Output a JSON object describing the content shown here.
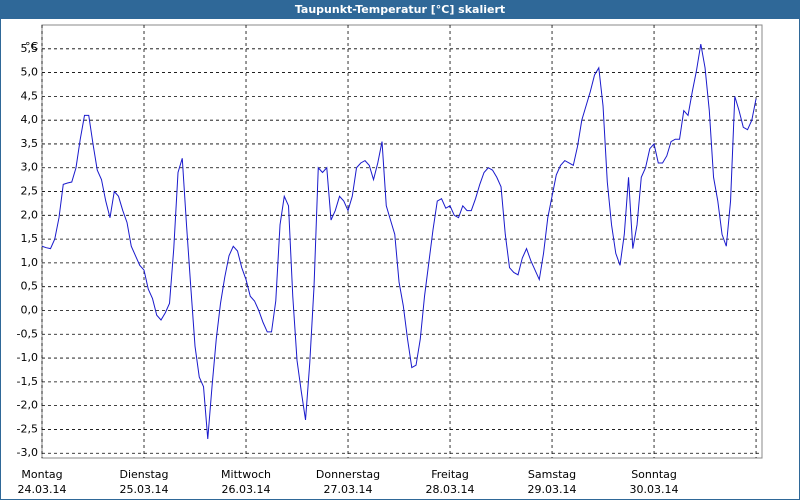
{
  "chart_data": {
    "type": "line",
    "title": "Taupunkt-Temperatur [°C] skaliert",
    "y_label": "°C",
    "x": [
      0,
      1,
      2,
      3,
      4,
      5,
      6,
      7,
      8,
      9,
      10,
      11,
      12,
      13,
      14,
      15,
      16,
      17,
      18,
      19,
      20,
      21,
      22,
      23,
      24,
      25,
      26,
      27,
      28,
      29,
      30,
      31,
      32,
      33,
      34,
      35,
      36,
      37,
      38,
      39,
      40,
      41,
      42,
      43,
      44,
      45,
      46,
      47,
      48,
      49,
      50,
      51,
      52,
      53,
      54,
      55,
      56,
      57,
      58,
      59,
      60,
      61,
      62,
      63,
      64,
      65,
      66,
      67,
      68,
      69,
      70,
      71,
      72,
      73,
      74,
      75,
      76,
      77,
      78,
      79,
      80,
      81,
      82,
      83,
      84,
      85,
      86,
      87,
      88,
      89,
      90,
      91,
      92,
      93,
      94,
      95,
      96,
      97,
      98,
      99,
      100,
      101,
      102,
      103,
      104,
      105,
      106,
      107,
      108,
      109,
      110,
      111,
      112,
      113,
      114,
      115,
      116,
      117,
      118,
      119,
      120,
      121,
      122,
      123,
      124,
      125,
      126,
      127,
      128,
      129,
      130,
      131,
      132,
      133,
      134,
      135,
      136,
      137,
      138,
      139,
      140,
      141,
      142,
      143,
      144,
      145,
      146,
      147,
      148,
      149,
      150,
      151,
      152,
      153,
      154,
      155,
      156,
      157,
      158,
      159,
      160,
      161,
      162,
      163,
      164,
      165,
      166,
      167,
      168
    ],
    "series": [
      {
        "name": "Taupunkt",
        "color": "#1a1acc",
        "values": [
          1.35,
          1.32,
          1.3,
          1.5,
          1.95,
          2.65,
          2.68,
          2.7,
          3.0,
          3.6,
          4.1,
          4.1,
          3.5,
          2.95,
          2.75,
          2.3,
          1.95,
          2.5,
          2.4,
          2.1,
          1.85,
          1.35,
          1.15,
          0.95,
          0.85,
          0.45,
          0.25,
          -0.1,
          -0.2,
          -0.05,
          0.15,
          1.3,
          2.9,
          3.2,
          1.8,
          0.5,
          -0.75,
          -1.4,
          -1.6,
          -2.7,
          -1.6,
          -0.6,
          0.15,
          0.7,
          1.15,
          1.35,
          1.25,
          0.9,
          0.65,
          0.3,
          0.2,
          0.0,
          -0.25,
          -0.45,
          -0.45,
          0.2,
          1.8,
          2.4,
          2.2,
          0.3,
          -1.05,
          -1.7,
          -2.3,
          -1.1,
          0.5,
          3.0,
          2.9,
          3.0,
          1.9,
          2.1,
          2.4,
          2.3,
          2.1,
          2.4,
          3.0,
          3.1,
          3.15,
          3.05,
          2.75,
          3.1,
          3.55,
          2.2,
          1.9,
          1.6,
          0.6,
          0.1,
          -0.6,
          -1.2,
          -1.15,
          -0.6,
          0.3,
          1.0,
          1.7,
          2.3,
          2.35,
          2.15,
          2.2,
          2.0,
          1.95,
          2.2,
          2.1,
          2.1,
          2.35,
          2.65,
          2.9,
          3.0,
          2.95,
          2.8,
          2.6,
          1.6,
          0.9,
          0.8,
          0.75,
          1.1,
          1.3,
          1.05,
          0.85,
          0.65,
          1.2,
          1.95,
          2.4,
          2.85,
          3.05,
          3.15,
          3.1,
          3.05,
          3.45,
          4.0,
          4.3,
          4.6,
          4.95,
          5.1,
          4.3,
          2.7,
          1.8,
          1.2,
          0.95,
          1.6,
          2.8,
          1.3,
          1.8,
          2.8,
          3.0,
          3.4,
          3.5,
          3.1,
          3.1,
          3.25,
          3.55,
          3.6,
          3.6,
          4.2,
          4.1,
          4.6,
          5.05,
          5.6,
          5.1,
          4.2,
          2.8,
          2.3,
          1.6,
          1.35,
          2.3,
          4.5,
          4.2,
          3.85,
          3.8,
          4.0,
          4.45
        ]
      }
    ],
    "xlim": [
      0,
      169.4
    ],
    "xticks": [
      {
        "value": 0,
        "label": "Montag",
        "date": "24.03.14"
      },
      {
        "value": 24,
        "label": "Dienstag",
        "date": "25.03.14"
      },
      {
        "value": 48,
        "label": "Mittwoch",
        "date": "26.03.14"
      },
      {
        "value": 72,
        "label": "Donnerstag",
        "date": "27.03.14"
      },
      {
        "value": 96,
        "label": "Freitag",
        "date": "28.03.14"
      },
      {
        "value": 120,
        "label": "Samstag",
        "date": "29.03.14"
      },
      {
        "value": 144,
        "label": "Sonntag",
        "date": "30.03.14"
      },
      {
        "value": 168
      }
    ],
    "ylim": [
      -3.1,
      6.0
    ],
    "yticks": [
      {
        "value": -3.0,
        "label": "-3,0"
      },
      {
        "value": -2.5,
        "label": "-2,5"
      },
      {
        "value": -2.0,
        "label": "-2,0"
      },
      {
        "value": -1.5,
        "label": "-1,5"
      },
      {
        "value": -1.0,
        "label": "-1,0"
      },
      {
        "value": -0.5,
        "label": "-0,5"
      },
      {
        "value": 0,
        "label": "0,0"
      },
      {
        "value": 0.5,
        "label": "0,5"
      },
      {
        "value": 1.0,
        "label": "1,0"
      },
      {
        "value": 1.5,
        "label": "1,5"
      },
      {
        "value": 2.0,
        "label": "2,0"
      },
      {
        "value": 2.5,
        "label": "2,5"
      },
      {
        "value": 3.0,
        "label": "3,0"
      },
      {
        "value": 3.5,
        "label": "3,5"
      },
      {
        "value": 4.0,
        "label": "4,0"
      },
      {
        "value": 4.5,
        "label": "4,5"
      },
      {
        "value": 5.0,
        "label": "5,0"
      },
      {
        "value": 5.5,
        "label": "5,5"
      }
    ],
    "grid": true
  }
}
